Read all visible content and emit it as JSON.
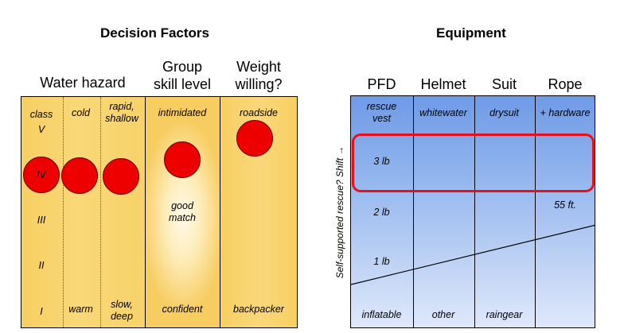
{
  "left_section": {
    "title": "Decision Factors",
    "headers": {
      "water_hazard": "Water hazard",
      "group_skill": "Group\nskill level",
      "weight_willing": "Weight\nwilling?"
    },
    "class_column": {
      "top": "class\nV",
      "levels": [
        "IV",
        "III",
        "II",
        "I"
      ]
    },
    "cold_column": {
      "top": "cold",
      "bottom": "warm"
    },
    "rapid_column": {
      "top": "rapid,\nshallow",
      "bottom": "slow,\ndeep"
    },
    "group_column": {
      "top": "intimidated",
      "middle": "good\nmatch",
      "bottom": "confident"
    },
    "weight_column": {
      "top": "roadside",
      "bottom": "backpacker"
    },
    "dot_color": "#ee0000"
  },
  "right_section": {
    "title": "Equipment",
    "headers": [
      "PFD",
      "Helmet",
      "Suit",
      "Rope"
    ],
    "top_row": [
      "rescue\nvest",
      "whitewater",
      "drysuit",
      "+ hardware"
    ],
    "bottom_row": [
      "inflatable",
      "other",
      "raingear"
    ],
    "weights": [
      "3 lb",
      "2 lb",
      "1 lb"
    ],
    "rope_length": "55 ft.",
    "side_label": "Self-supported rescue? Shift →",
    "highlight_color": "#e8101a",
    "panel_color": "#6f9ae6"
  }
}
